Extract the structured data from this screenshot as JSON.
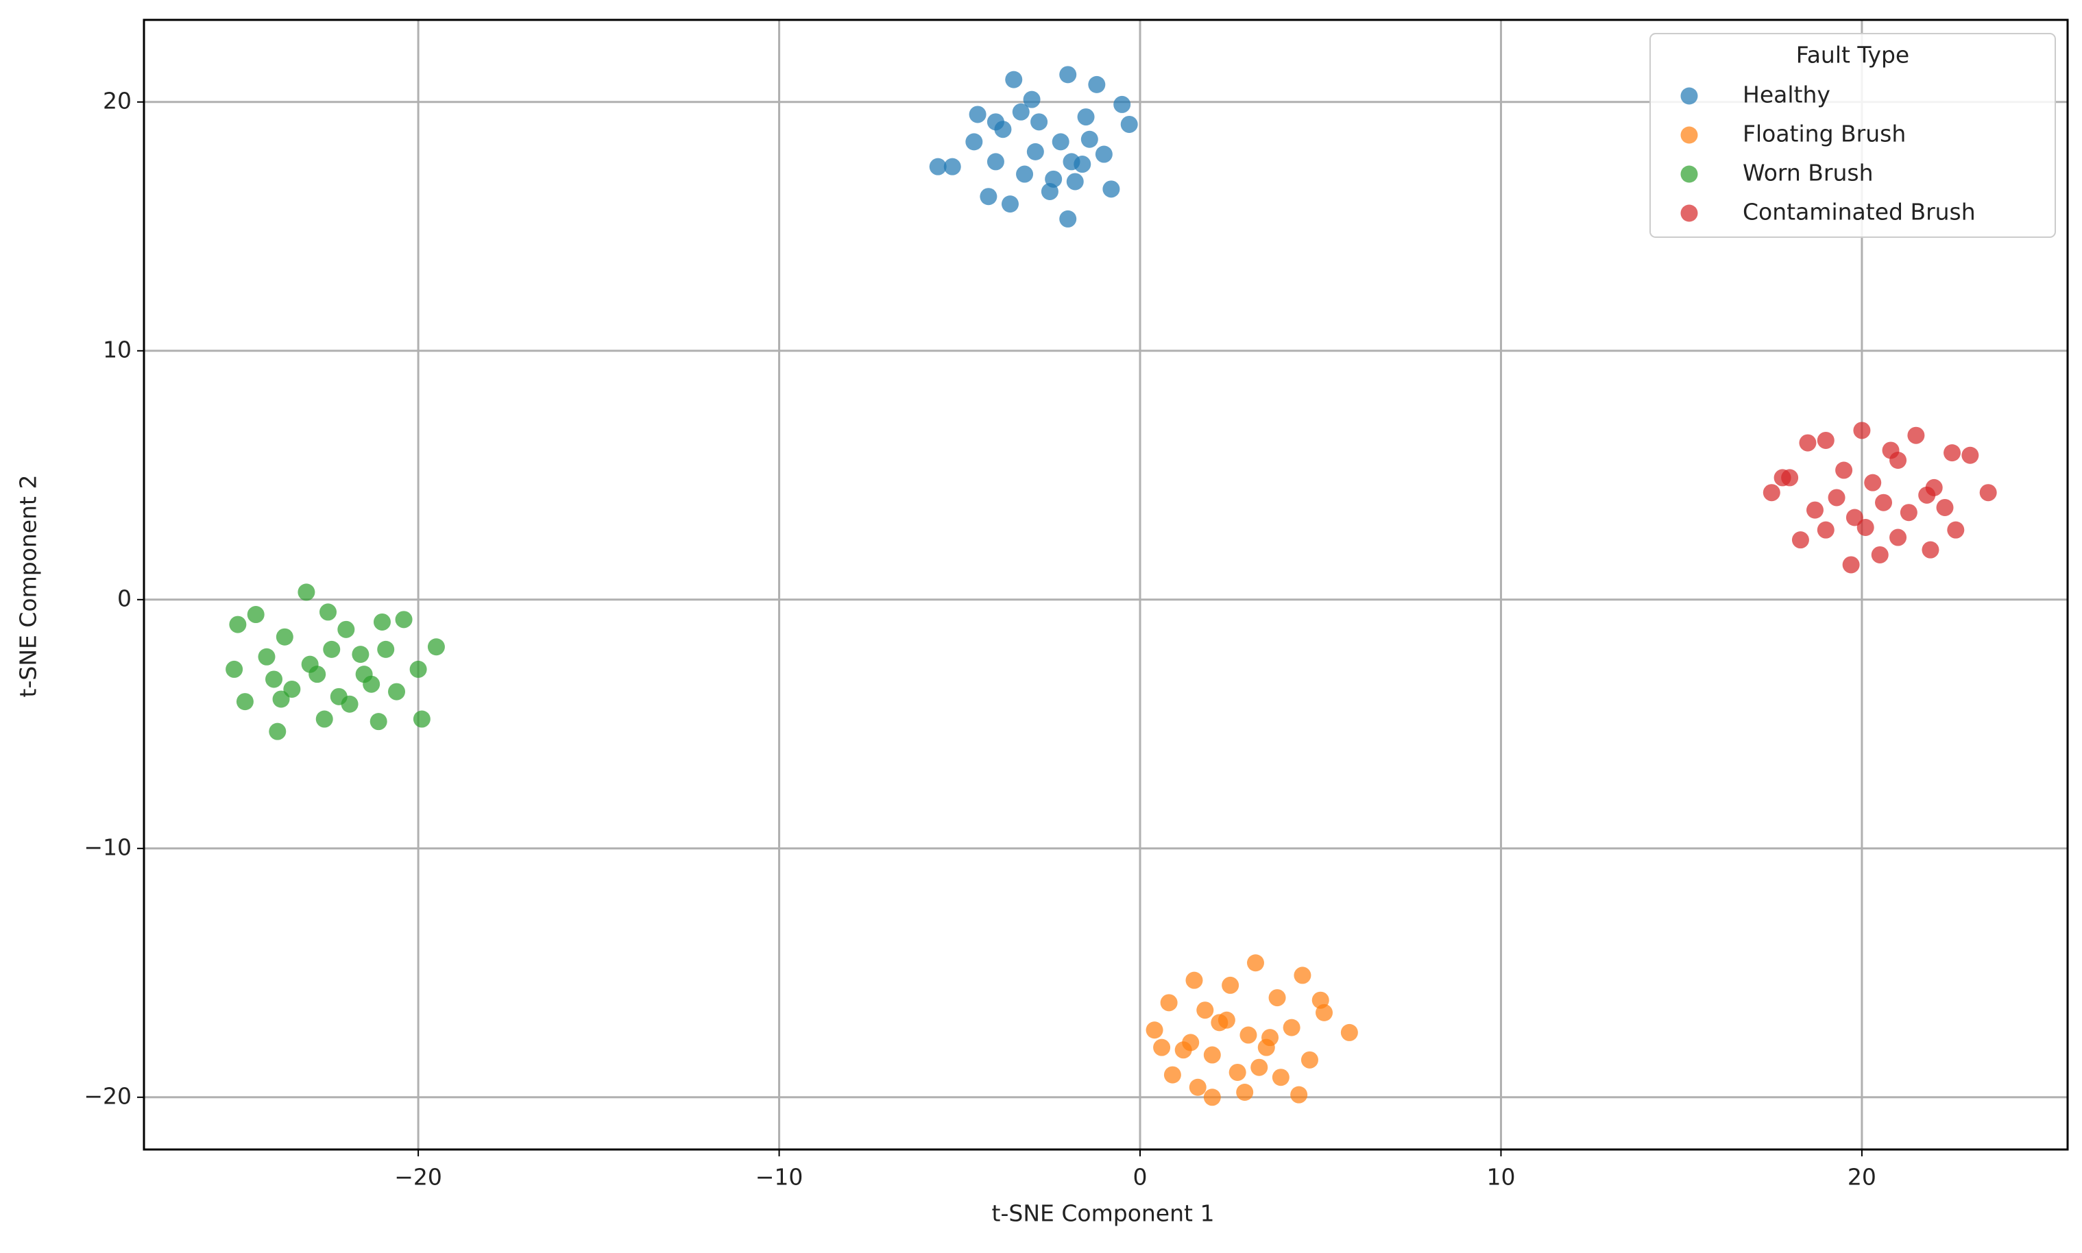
{
  "chart_data": {
    "type": "scatter",
    "xlabel": "t-SNE Component 1",
    "ylabel": "t-SNE Component 2",
    "legend_title": "Fault Type",
    "legend": "upper right",
    "grid": true,
    "alpha": 0.7,
    "xlim": [
      -27.6,
      25.7
    ],
    "ylim": [
      -22.1,
      23.3
    ],
    "xticks": [
      {
        "value": -20,
        "label": "−20"
      },
      {
        "value": -10,
        "label": "−10"
      },
      0,
      10,
      20
    ],
    "yticks": [
      {
        "value": -20,
        "label": "−20"
      },
      {
        "value": -10,
        "label": "−10"
      },
      0,
      10,
      20
    ],
    "series": [
      {
        "name": "Healthy",
        "color": "#1f77b4",
        "x": [
          -3.5,
          -3,
          -2,
          -1.2,
          -4.5,
          -2.8,
          -1.5,
          -3.8,
          -0.5,
          -2.2,
          -5.2,
          -4,
          -1,
          -3.2,
          -2.5,
          -1.8,
          -4.2,
          -0.8,
          -3.6,
          -2,
          -5.6,
          -1.4,
          -2.9,
          -4.6,
          -0.3,
          -3.3,
          -1.6,
          -2.4,
          -4,
          -1.9
        ],
        "values": [
          20.9,
          20.1,
          21.1,
          20.7,
          19.5,
          19.2,
          19.4,
          18.9,
          19.9,
          18.4,
          17.4,
          17.6,
          17.9,
          17.1,
          16.4,
          16.8,
          16.2,
          16.5,
          15.9,
          15.3,
          17.4,
          18.5,
          18.0,
          18.4,
          19.1,
          19.6,
          17.5,
          16.9,
          19.2,
          17.6
        ]
      },
      {
        "name": "Floating Brush",
        "color": "#ff7f0e",
        "x": [
          1.5,
          2.5,
          3.2,
          4.5,
          0.8,
          1.8,
          3.8,
          5,
          0.4,
          2.2,
          3,
          4.2,
          5.8,
          1.2,
          2,
          3.5,
          4.7,
          0.9,
          2.7,
          3.9,
          1.6,
          2.9,
          4.4,
          2,
          3.3,
          0.6,
          5.1,
          1.4,
          2.4,
          3.6
        ],
        "values": [
          -15.3,
          -15.5,
          -14.6,
          -15.1,
          -16.2,
          -16.5,
          -16.0,
          -16.1,
          -17.3,
          -17.0,
          -17.5,
          -17.2,
          -17.4,
          -18.1,
          -18.3,
          -18.0,
          -18.5,
          -19.1,
          -19.0,
          -19.2,
          -19.6,
          -19.8,
          -19.9,
          -20.0,
          -18.8,
          -18.0,
          -16.6,
          -17.8,
          -16.9,
          -17.6
        ]
      },
      {
        "name": "Worn Brush",
        "color": "#2ca02c",
        "x": [
          -23.1,
          -22.5,
          -24.5,
          -21,
          -20.4,
          -25,
          -23.7,
          -22,
          -20.9,
          -19.5,
          -24.2,
          -23,
          -21.6,
          -20,
          -25.1,
          -24,
          -22.8,
          -21.3,
          -23.5,
          -22.2,
          -20.6,
          -24.8,
          -23.8,
          -21.9,
          -21.1,
          -22.6,
          -19.9,
          -23.9,
          -22.4,
          -21.5
        ],
        "values": [
          0.3,
          -0.5,
          -0.6,
          -0.9,
          -0.8,
          -1.0,
          -1.5,
          -1.2,
          -2.0,
          -1.9,
          -2.3,
          -2.6,
          -2.2,
          -2.8,
          -2.8,
          -3.2,
          -3.0,
          -3.4,
          -3.6,
          -3.9,
          -3.7,
          -4.1,
          -4.0,
          -4.2,
          -4.9,
          -4.8,
          -4.8,
          -5.3,
          -2.0,
          -3.0
        ]
      },
      {
        "name": "Contaminated Brush",
        "color": "#d62728",
        "x": [
          20,
          19,
          21.5,
          18.5,
          20.8,
          22.5,
          17.5,
          19.5,
          21,
          23,
          18,
          20.3,
          22,
          19.3,
          21.8,
          23.5,
          18.7,
          20.6,
          22.3,
          19.8,
          21.3,
          19,
          20.1,
          22.6,
          18.3,
          21,
          20.5,
          19.7,
          21.9,
          17.8
        ],
        "values": [
          6.8,
          6.4,
          6.6,
          6.3,
          6.0,
          5.9,
          4.3,
          5.2,
          5.6,
          5.8,
          4.9,
          4.7,
          4.5,
          4.1,
          4.2,
          4.3,
          3.6,
          3.9,
          3.7,
          3.3,
          3.5,
          2.8,
          2.9,
          2.8,
          2.4,
          2.5,
          1.8,
          1.4,
          2.0,
          4.9
        ]
      }
    ]
  }
}
